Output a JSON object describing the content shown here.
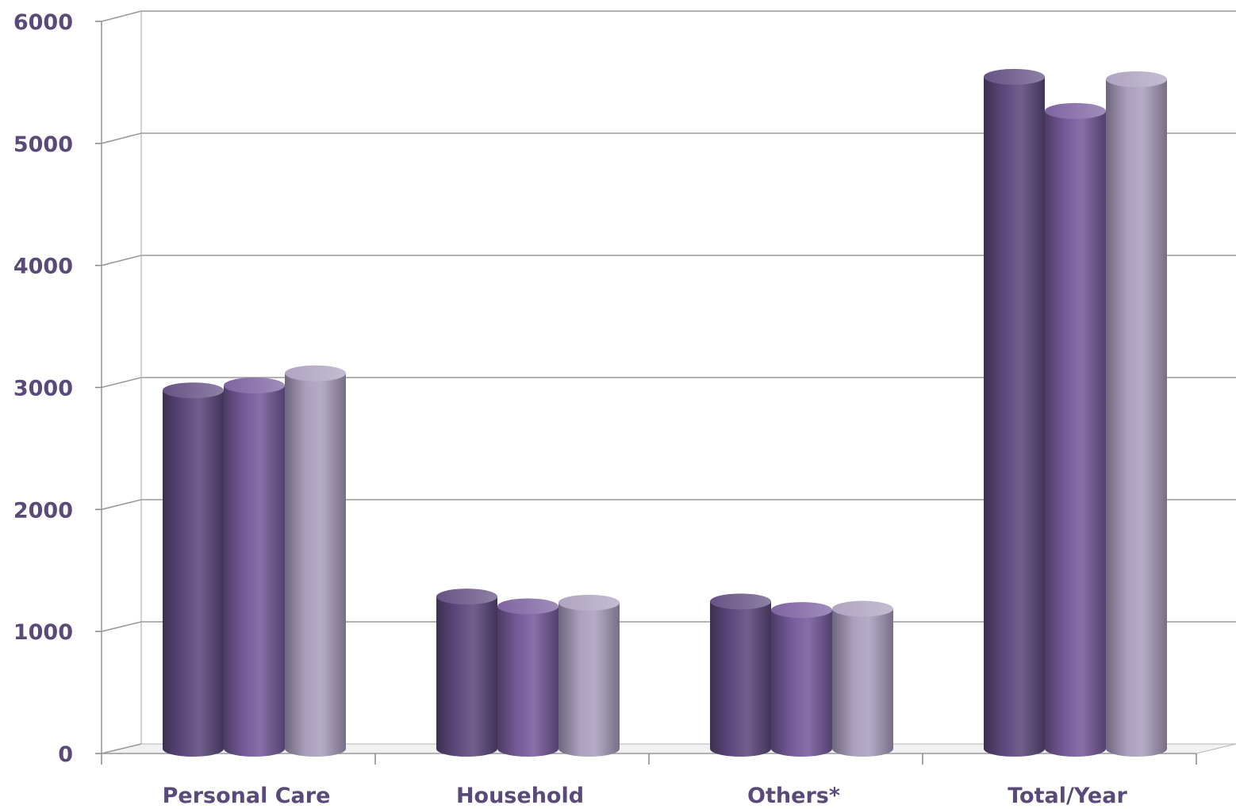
{
  "chart_data": {
    "type": "bar",
    "style": "3d-cylinder",
    "title": "",
    "xlabel": "",
    "ylabel": "",
    "categories": [
      "Personal Care",
      "Household",
      "Others*",
      "Total/Year"
    ],
    "series": [
      {
        "color": "#5e4a7e",
        "values": [
          2950,
          1260,
          1220,
          5520
        ]
      },
      {
        "color": "#775c9c",
        "values": [
          2990,
          1180,
          1150,
          5240
        ]
      },
      {
        "color": "#ab9fbf",
        "values": [
          3090,
          1210,
          1160,
          5500
        ]
      }
    ],
    "ylim": [
      0,
      6000
    ],
    "yticks": [
      "0",
      "1000",
      "2000",
      "3000",
      "4000",
      "5000",
      "6000"
    ],
    "grid": true,
    "legend": "none",
    "colors": {
      "text": "#5a4a7a",
      "grid": "#9a9a9a"
    }
  }
}
